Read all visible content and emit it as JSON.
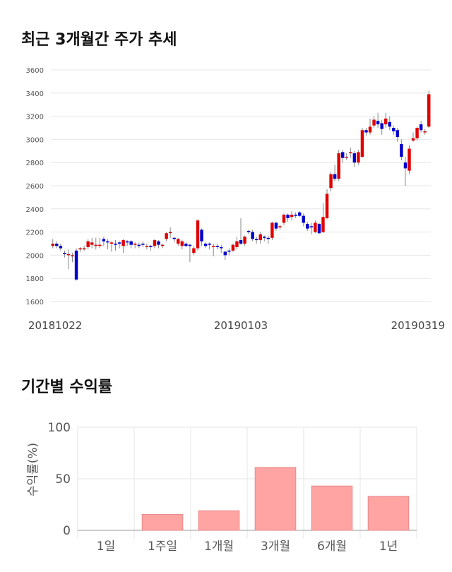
{
  "titles": {
    "price_trend": "최근 3개월간 주가 추세",
    "returns": "기간별 수익률"
  },
  "colors": {
    "up": "#e00000",
    "down": "#0000cc",
    "bar_fill": "#ffa3a3",
    "bar_stroke": "#e58a8a",
    "grid": "#e6e6e6"
  },
  "chart_data": [
    {
      "type": "candlestick",
      "title": "최근 3개월간 주가 추세",
      "ylim": [
        1600,
        3600
      ],
      "yticks": [
        1600,
        1800,
        2000,
        2200,
        2400,
        2600,
        2800,
        3000,
        3200,
        3400,
        3600
      ],
      "x_tick_labels": [
        "20181022",
        "20190103",
        "20190319"
      ],
      "grid": true,
      "candles": [
        [
          2080,
          2100,
          2060,
          2140
        ],
        [
          2100,
          2080,
          2060,
          2120
        ],
        [
          2080,
          2060,
          2040,
          2100
        ],
        [
          2020,
          2010,
          1980,
          2040
        ],
        [
          2000,
          2010,
          1880,
          2050
        ],
        [
          1990,
          2000,
          1940,
          2020
        ],
        [
          2040,
          1790,
          1780,
          2060
        ],
        [
          2050,
          2060,
          2030,
          2070
        ],
        [
          2050,
          2060,
          2040,
          2080
        ],
        [
          2070,
          2120,
          2050,
          2140
        ],
        [
          2090,
          2110,
          2060,
          2150
        ],
        [
          2080,
          2090,
          2050,
          2150
        ],
        [
          2080,
          2090,
          2060,
          2150
        ],
        [
          2140,
          2120,
          2080,
          2160
        ],
        [
          2120,
          2110,
          2050,
          2140
        ],
        [
          2100,
          2110,
          2030,
          2120
        ],
        [
          2100,
          2090,
          2040,
          2130
        ],
        [
          2110,
          2100,
          2060,
          2120
        ],
        [
          2080,
          2130,
          2020,
          2140
        ],
        [
          2120,
          2110,
          2080,
          2130
        ],
        [
          2120,
          2090,
          2060,
          2130
        ],
        [
          2090,
          2100,
          2060,
          2110
        ],
        [
          2090,
          2080,
          2060,
          2110
        ],
        [
          2100,
          2090,
          2070,
          2120
        ],
        [
          2080,
          2080,
          2050,
          2100
        ],
        [
          2080,
          2070,
          2040,
          2090
        ],
        [
          2080,
          2130,
          2060,
          2140
        ],
        [
          2120,
          2090,
          2060,
          2130
        ],
        [
          2080,
          2090,
          2060,
          2100
        ],
        [
          2140,
          2190,
          2120,
          2200
        ],
        [
          2190,
          2200,
          2150,
          2240
        ],
        [
          2150,
          2140,
          2110,
          2160
        ],
        [
          2100,
          2140,
          2080,
          2150
        ],
        [
          2080,
          2120,
          2050,
          2130
        ],
        [
          2100,
          2080,
          2070,
          2110
        ],
        [
          2090,
          2080,
          1940,
          2100
        ],
        [
          2020,
          2060,
          2000,
          2080
        ],
        [
          2060,
          2300,
          2040,
          2310
        ],
        [
          2220,
          2120,
          2080,
          2230
        ],
        [
          2100,
          2080,
          2060,
          2110
        ],
        [
          2100,
          2090,
          2050,
          2110
        ],
        [
          2080,
          2080,
          1990,
          2100
        ],
        [
          2080,
          2070,
          2050,
          2100
        ],
        [
          2070,
          2060,
          2020,
          2090
        ],
        [
          2030,
          2000,
          1960,
          2040
        ],
        [
          2040,
          2030,
          2000,
          2060
        ],
        [
          2040,
          2090,
          2030,
          2100
        ],
        [
          2070,
          2120,
          2050,
          2160
        ],
        [
          2130,
          2100,
          2090,
          2320
        ],
        [
          2100,
          2160,
          2080,
          2170
        ],
        [
          2210,
          2200,
          2180,
          2220
        ],
        [
          2200,
          2140,
          2120,
          2220
        ],
        [
          2140,
          2130,
          2100,
          2160
        ],
        [
          2130,
          2180,
          2100,
          2200
        ],
        [
          2160,
          2150,
          2120,
          2170
        ],
        [
          2150,
          2140,
          2100,
          2170
        ],
        [
          2150,
          2280,
          2130,
          2290
        ],
        [
          2280,
          2230,
          2210,
          2290
        ],
        [
          2240,
          2250,
          2220,
          2260
        ],
        [
          2280,
          2350,
          2260,
          2360
        ],
        [
          2350,
          2320,
          2290,
          2360
        ],
        [
          2330,
          2350,
          2300,
          2380
        ],
        [
          2350,
          2340,
          2320,
          2370
        ],
        [
          2370,
          2340,
          2330,
          2380
        ],
        [
          2340,
          2280,
          2250,
          2360
        ],
        [
          2270,
          2230,
          2210,
          2290
        ],
        [
          2250,
          2240,
          2180,
          2280
        ],
        [
          2200,
          2280,
          2190,
          2300
        ],
        [
          2270,
          2190,
          2180,
          2280
        ],
        [
          2200,
          2330,
          2190,
          2450
        ],
        [
          2320,
          2530,
          2310,
          2570
        ],
        [
          2580,
          2700,
          2550,
          2720
        ],
        [
          2700,
          2660,
          2640,
          2780
        ],
        [
          2660,
          2880,
          2640,
          2910
        ],
        [
          2890,
          2840,
          2800,
          2910
        ],
        [
          2850,
          2850,
          2820,
          2880
        ],
        [
          2880,
          2890,
          2840,
          2930
        ],
        [
          2880,
          2800,
          2760,
          2900
        ],
        [
          2800,
          2890,
          2780,
          2910
        ],
        [
          2850,
          3080,
          2840,
          3100
        ],
        [
          3080,
          3060,
          3030,
          3100
        ],
        [
          3060,
          3110,
          3040,
          3180
        ],
        [
          3120,
          3170,
          3100,
          3200
        ],
        [
          3160,
          3130,
          3100,
          3230
        ],
        [
          3140,
          3090,
          3040,
          3170
        ],
        [
          3130,
          3180,
          3100,
          3230
        ],
        [
          3150,
          3110,
          3080,
          3200
        ],
        [
          3100,
          3070,
          3040,
          3120
        ],
        [
          3080,
          3020,
          2980,
          3100
        ],
        [
          2960,
          2850,
          2820,
          3000
        ],
        [
          2800,
          2750,
          2600,
          2850
        ],
        [
          2730,
          2920,
          2700,
          2950
        ],
        [
          2990,
          3010,
          2980,
          3060
        ],
        [
          3010,
          3100,
          2990,
          3110
        ],
        [
          3130,
          3080,
          3060,
          3160
        ],
        [
          3060,
          3070,
          3040,
          3090
        ],
        [
          3110,
          3390,
          3100,
          3420
        ]
      ]
    },
    {
      "type": "bar",
      "title": "기간별 수익률",
      "ylabel": "수익률(%)",
      "ylim": [
        0,
        100
      ],
      "yticks": [
        0,
        50,
        100
      ],
      "categories": [
        "1일",
        "1주일",
        "1개월",
        "3개월",
        "6개월",
        "1년"
      ],
      "values": [
        0,
        15.5,
        19,
        61,
        43,
        33
      ],
      "grid": true
    }
  ]
}
